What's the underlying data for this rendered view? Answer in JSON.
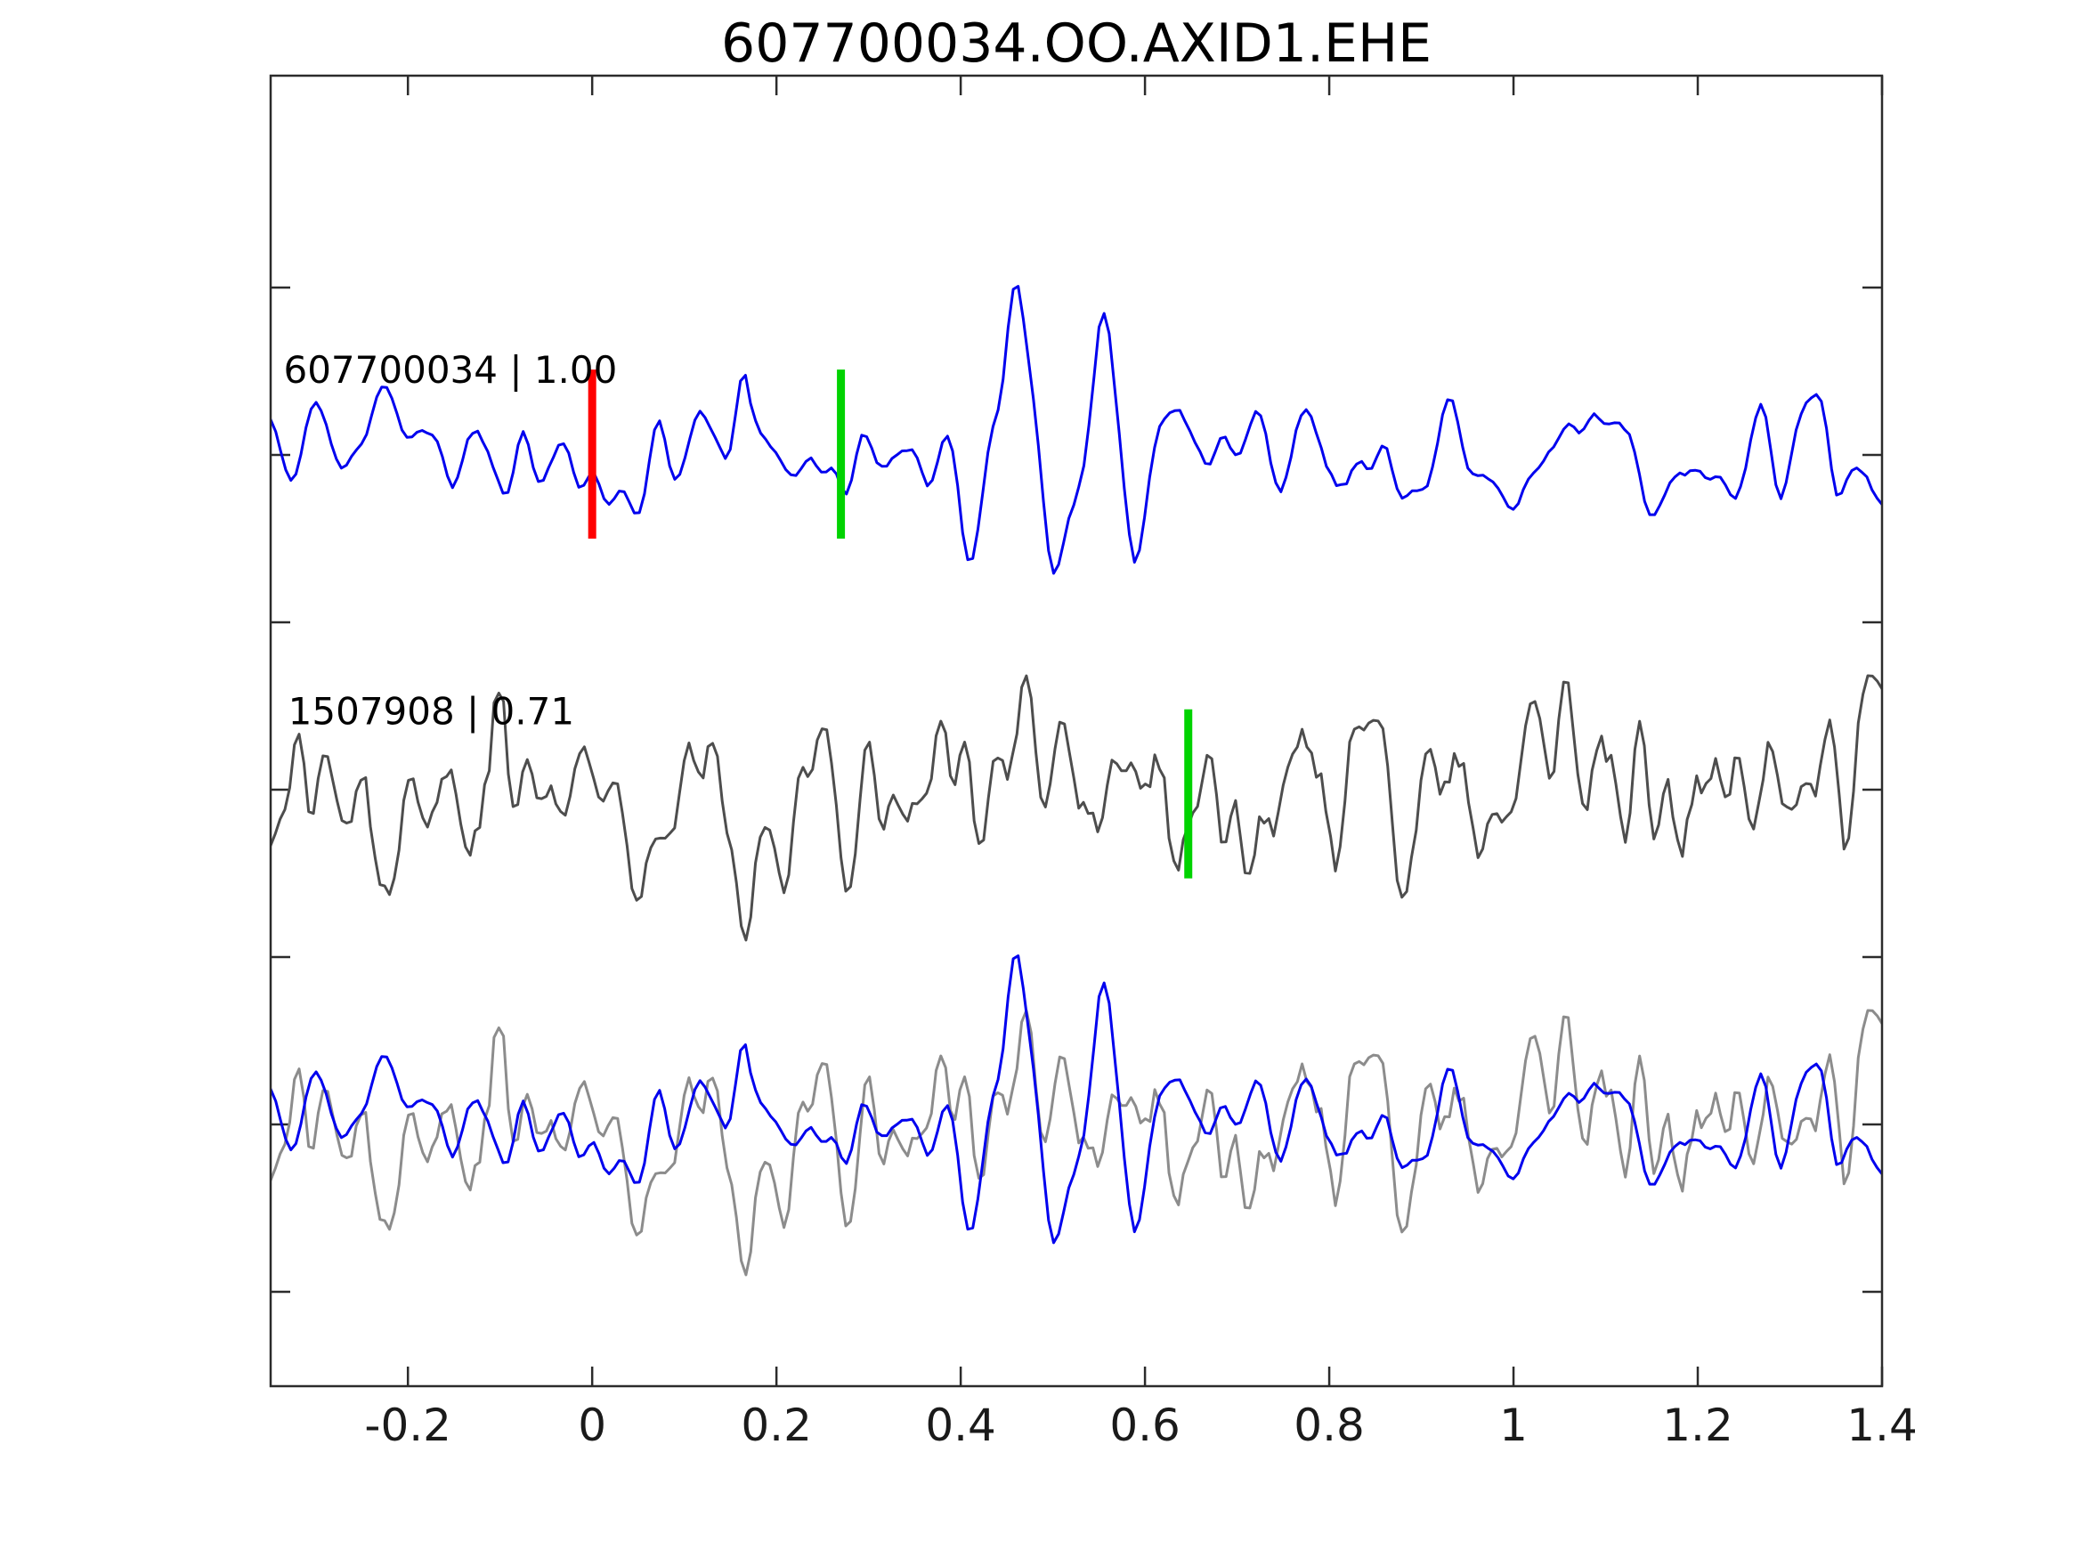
{
  "title": "607700034.OO.AXID1.EHE",
  "colors": {
    "template_blue": "#0000ee",
    "detection_dark_gray": "#4d4d4d",
    "overlay_light_gray": "#8c8c8c",
    "pick_red": "#ff0000",
    "pick_green": "#00d300",
    "spine": "#2b2b2b",
    "tick_label": "#1a1a1a",
    "annotation": "#000000",
    "background": "#ffffff"
  },
  "chart_data": {
    "type": "line",
    "title": "607700034.OO.AXID1.EHE",
    "xlabel": "",
    "ylabel": "",
    "grid": false,
    "legend": "none",
    "xlim": [
      -0.349,
      1.4
    ],
    "ylim": [
      -0.564,
      7.266
    ],
    "xticks": [
      -0.2,
      0,
      0.2,
      0.4,
      0.6,
      0.8,
      1,
      1.2,
      1.4
    ],
    "xtick_labels": [
      "-0.2",
      "0",
      "0.2",
      "0.4",
      "0.6",
      "0.8",
      "1",
      "1.2",
      "1.4"
    ],
    "yticks": [
      0,
      1,
      2,
      3,
      4,
      5,
      6
    ],
    "ytick_labels": [
      "",
      "",
      "",
      "",
      "",
      "",
      ""
    ],
    "series": [
      {
        "id": "template",
        "event_id": "607700034",
        "correlation": 1.0,
        "annotation": {
          "text": "607700034 | 1.00",
          "x": -0.335,
          "y": 5.43
        },
        "color": "#0000ee",
        "baseline": 5,
        "sigma": 0.17,
        "smooth_passes": 3,
        "n": 320,
        "seed": 113,
        "events": [
          {
            "x": 0.137,
            "w": 0.011,
            "a": 0.3
          },
          {
            "x": 0.164,
            "w": 0.009,
            "a": 0.32
          },
          {
            "x": 0.408,
            "w": 0.014,
            "a": -0.68
          },
          {
            "x": 0.434,
            "w": 0.011,
            "a": 0.38
          },
          {
            "x": 0.461,
            "w": 0.017,
            "a": 1.12
          },
          {
            "x": 0.503,
            "w": 0.018,
            "a": -0.78
          },
          {
            "x": 0.559,
            "w": 0.016,
            "a": 0.85
          },
          {
            "x": 0.588,
            "w": 0.013,
            "a": -0.4
          },
          {
            "x": 1.338,
            "w": 0.012,
            "a": 0.5
          }
        ],
        "markers": [
          {
            "name": "pick-marker-red",
            "x": 0.0,
            "color": "#ff0000",
            "from": 4.5,
            "to": 5.51
          },
          {
            "name": "pick-marker-green-template",
            "x": 0.27,
            "color": "#00d300",
            "from": 4.5,
            "to": 5.51
          }
        ]
      },
      {
        "id": "detection",
        "event_id": "1507908",
        "correlation": 0.71,
        "annotation": {
          "text": "1507908 | 0.71",
          "x": -0.33,
          "y": 3.39
        },
        "color": "#4d4d4d",
        "baseline": 3,
        "sigma": 0.28,
        "smooth_passes": 2,
        "n": 340,
        "seed": 77,
        "events": [
          {
            "x": -0.266,
            "w": 0.011,
            "a": 0.45
          },
          {
            "x": -0.1,
            "w": 0.01,
            "a": 0.4
          },
          {
            "x": 0.17,
            "w": 0.012,
            "a": -0.45
          },
          {
            "x": 0.8,
            "w": 0.011,
            "a": -0.5
          },
          {
            "x": 1.09,
            "w": 0.01,
            "a": 0.45
          },
          {
            "x": 1.362,
            "w": 0.011,
            "a": -0.7
          }
        ],
        "markers": [
          {
            "name": "pick-marker-green-detection",
            "x": 0.647,
            "color": "#00d300",
            "from": 2.47,
            "to": 3.48
          }
        ]
      }
    ],
    "overlay": {
      "baseline": 1,
      "items": [
        {
          "series": "detection",
          "color": "#8c8c8c"
        },
        {
          "series": "template",
          "color": "#0000ee"
        }
      ]
    }
  }
}
